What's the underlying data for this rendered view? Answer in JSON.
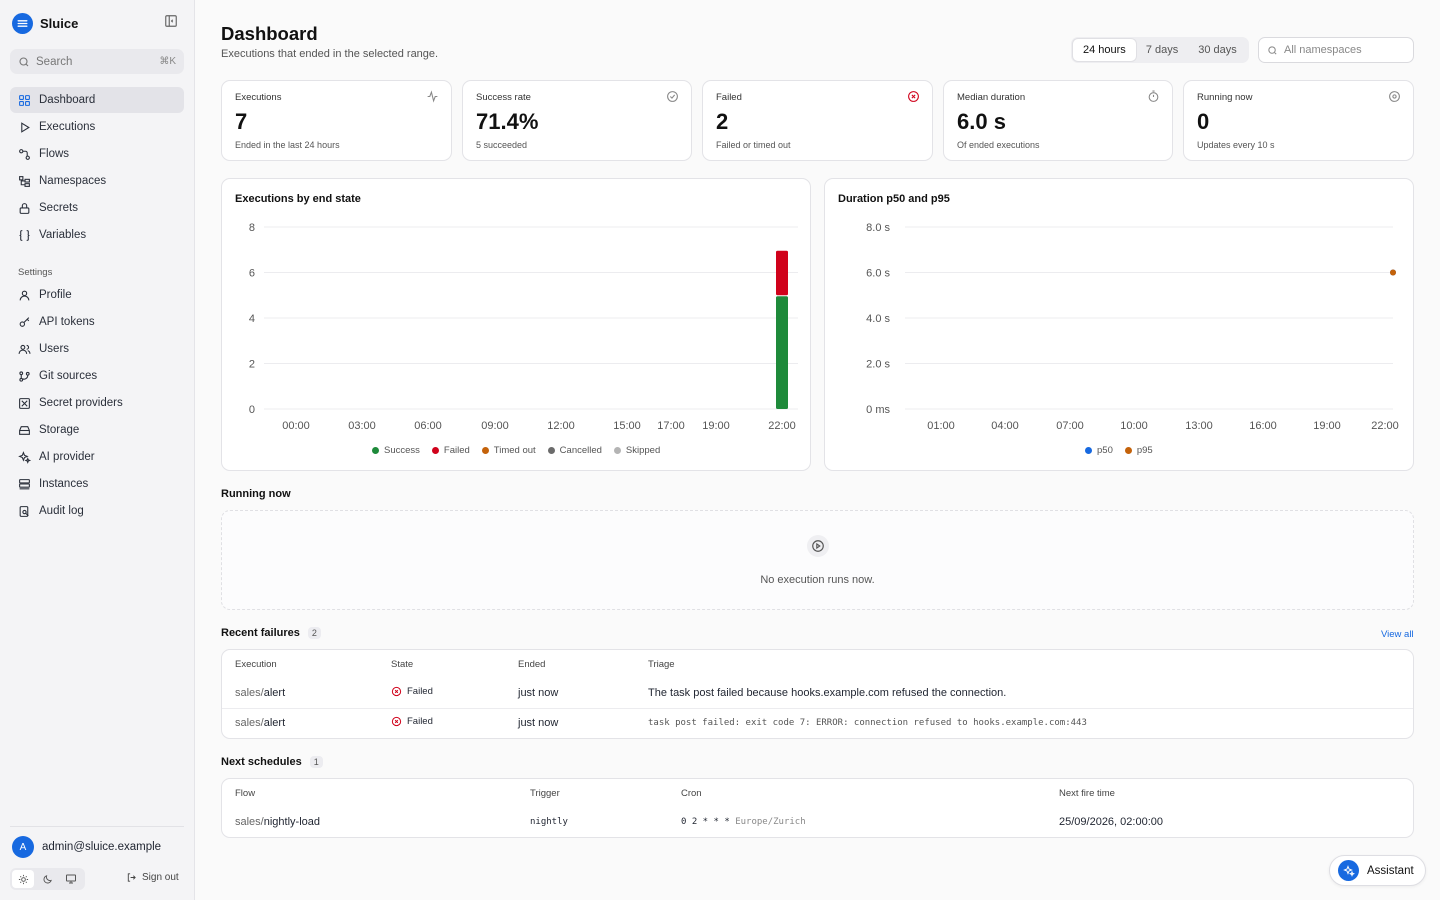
{
  "brand": {
    "name": "Sluice"
  },
  "search": {
    "placeholder": "Search",
    "shortcut": "⌘K"
  },
  "nav": [
    {
      "label": "Dashboard",
      "icon": "dashboard-icon",
      "active": true
    },
    {
      "label": "Executions",
      "icon": "play-icon"
    },
    {
      "label": "Flows",
      "icon": "flows-icon"
    },
    {
      "label": "Namespaces",
      "icon": "namespaces-icon"
    },
    {
      "label": "Secrets",
      "icon": "lock-icon"
    },
    {
      "label": "Variables",
      "icon": "braces-icon"
    }
  ],
  "settings": {
    "label": "Settings",
    "items": [
      {
        "label": "Profile",
        "icon": "user-icon"
      },
      {
        "label": "API tokens",
        "icon": "key-icon"
      },
      {
        "label": "Users",
        "icon": "users-icon"
      },
      {
        "label": "Git sources",
        "icon": "git-icon"
      },
      {
        "label": "Secret providers",
        "icon": "vault-icon"
      },
      {
        "label": "Storage",
        "icon": "storage-icon"
      },
      {
        "label": "AI provider",
        "icon": "sparkles-icon"
      },
      {
        "label": "Instances",
        "icon": "server-icon"
      },
      {
        "label": "Audit log",
        "icon": "audit-icon"
      }
    ]
  },
  "user": {
    "initial": "A",
    "email": "admin@sluice.example",
    "signout": "Sign out"
  },
  "header": {
    "title": "Dashboard",
    "subtitle": "Executions that ended in the selected range."
  },
  "range": {
    "options": [
      "24 hours",
      "7 days",
      "30 days"
    ],
    "selected": "24 hours"
  },
  "namespace_filter": {
    "placeholder": "All namespaces"
  },
  "kpis": [
    {
      "label": "Executions",
      "value": "7",
      "sub": "Ended in the last 24 hours",
      "icon": "activity-icon",
      "icon_color": "#888888"
    },
    {
      "label": "Success rate",
      "value": "71.4%",
      "sub": "5 succeeded",
      "icon": "check-circle-icon",
      "icon_color": "#888888"
    },
    {
      "label": "Failed",
      "value": "2",
      "sub": "Failed or timed out",
      "icon": "x-circle-icon",
      "icon_color": "#d0021b"
    },
    {
      "label": "Median duration",
      "value": "6.0 s",
      "sub": "Of ended executions",
      "icon": "timer-icon",
      "icon_color": "#888888"
    },
    {
      "label": "Running now",
      "value": "0",
      "sub": "Updates every 10 s",
      "icon": "radio-icon",
      "icon_color": "#888888"
    }
  ],
  "chart_data": [
    {
      "type": "bar",
      "title": "Executions by end state",
      "stacked": true,
      "x_ticks": [
        "00:00",
        "03:00",
        "06:00",
        "09:00",
        "12:00",
        "15:00",
        "17:00",
        "19:00",
        "22:00"
      ],
      "y_ticks": [
        "0",
        "2",
        "4",
        "6",
        "8"
      ],
      "ylim": [
        0,
        8
      ],
      "categories": [
        "22:00"
      ],
      "series": [
        {
          "name": "Success",
          "color": "#1e8a3a",
          "values": [
            5
          ]
        },
        {
          "name": "Failed",
          "color": "#d0021b",
          "values": [
            2
          ]
        },
        {
          "name": "Timed out",
          "color": "#c4620a",
          "values": [
            0
          ]
        },
        {
          "name": "Cancelled",
          "color": "#6b6b6b",
          "values": [
            0
          ]
        },
        {
          "name": "Skipped",
          "color": "#b4b4b4",
          "values": [
            0
          ]
        }
      ],
      "grid": true,
      "legend": "bottom"
    },
    {
      "type": "line",
      "title": "Duration p50 and p95",
      "x_ticks": [
        "01:00",
        "04:00",
        "07:00",
        "10:00",
        "13:00",
        "16:00",
        "19:00",
        "22:00"
      ],
      "y_ticks": [
        "0 ms",
        "2.0 s",
        "4.0 s",
        "6.0 s",
        "8.0 s"
      ],
      "ylim": [
        0,
        8
      ],
      "series": [
        {
          "name": "p50",
          "color": "#1769e0",
          "points": [
            {
              "x": "22:00",
              "y": 6.0
            }
          ]
        },
        {
          "name": "p95",
          "color": "#c4620a",
          "points": [
            {
              "x": "22:00",
              "y": 6.0
            }
          ]
        }
      ],
      "grid": true,
      "legend": "bottom"
    }
  ],
  "running_now": {
    "title": "Running now",
    "empty": "No execution runs now."
  },
  "recent_failures": {
    "title": "Recent failures",
    "count": "2",
    "view_all": "View all",
    "columns": [
      "Execution",
      "State",
      "Ended",
      "Triage"
    ],
    "rows": [
      {
        "ns": "sales/",
        "flow": "alert",
        "state": "Failed",
        "ended": "just now",
        "triage": "The task post failed because hooks.example.com refused the connection.",
        "mono": false
      },
      {
        "ns": "sales/",
        "flow": "alert",
        "state": "Failed",
        "ended": "just now",
        "triage": "task post failed: exit code 7: ERROR: connection refused to hooks.example.com:443",
        "mono": true
      }
    ]
  },
  "next_schedules": {
    "title": "Next schedules",
    "count": "1",
    "columns": [
      "Flow",
      "Trigger",
      "Cron",
      "Next fire time"
    ],
    "rows": [
      {
        "ns": "sales/",
        "flow": "nightly-load",
        "trigger": "nightly",
        "cron": "0 2 * * *",
        "tz": "Europe/Zurich",
        "next": "25/09/2026, 02:00:00"
      }
    ]
  },
  "assistant": {
    "label": "Assistant"
  }
}
